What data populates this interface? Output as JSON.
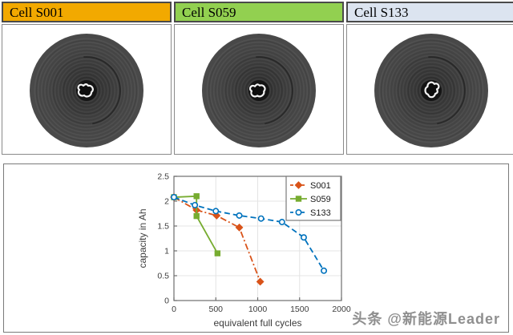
{
  "panels": [
    {
      "label": "Cell S001",
      "header_color": "#F2A900"
    },
    {
      "label": "Cell S059",
      "header_color": "#92D050"
    },
    {
      "label": "Cell S133",
      "header_color": "#DCE4F0"
    }
  ],
  "watermark": "头条 @新能源Leader",
  "chart_data": {
    "type": "line",
    "title": "",
    "xlabel": "equivalent full cycles",
    "ylabel": "capacity in Ah",
    "xlim": [
      0,
      2000
    ],
    "ylim": [
      0,
      2.5
    ],
    "xticks": [
      0,
      500,
      1000,
      1500,
      2000
    ],
    "yticks": [
      0,
      0.5,
      1,
      1.5,
      2,
      2.5
    ],
    "grid": true,
    "legend_position": "top-right",
    "series": [
      {
        "name": "S001",
        "color": "#D95319",
        "line": "dashdot",
        "marker": "diamond",
        "points": [
          [
            0,
            2.08
          ],
          [
            270,
            1.82
          ],
          [
            510,
            1.71
          ],
          [
            780,
            1.47
          ],
          [
            1030,
            0.38
          ]
        ]
      },
      {
        "name": "S059",
        "color": "#77AC30",
        "line": "solid",
        "marker": "square",
        "points": [
          [
            0,
            2.08
          ],
          [
            270,
            2.1
          ],
          [
            270,
            1.7
          ],
          [
            520,
            0.95
          ]
        ]
      },
      {
        "name": "S133",
        "color": "#0072BD",
        "line": "dashed",
        "marker": "circle",
        "points": [
          [
            0,
            2.08
          ],
          [
            250,
            1.92
          ],
          [
            500,
            1.8
          ],
          [
            780,
            1.71
          ],
          [
            1040,
            1.65
          ],
          [
            1290,
            1.58
          ],
          [
            1550,
            1.27
          ],
          [
            1790,
            0.6
          ]
        ]
      }
    ]
  }
}
